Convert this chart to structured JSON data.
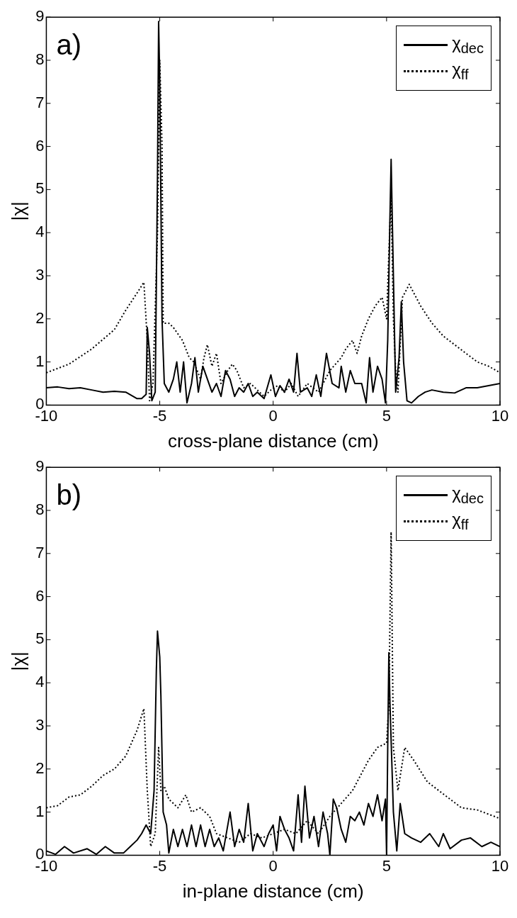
{
  "chart_data": [
    {
      "type": "line",
      "xlabel": "cross-plane distance (cm)",
      "ylabel": "|χ|",
      "annotations": [
        "a)"
      ],
      "xlim": [
        -10,
        10
      ],
      "ylim": [
        0,
        9
      ],
      "xticks": [
        -10,
        -5,
        0,
        5,
        10
      ],
      "yticks": [
        0,
        1,
        2,
        3,
        4,
        5,
        6,
        7,
        8,
        9
      ],
      "grid": false,
      "legend": "top right",
      "marker": "none",
      "series": [
        {
          "name": "χ$_{dec}$",
          "color": "#000000",
          "line_style": "solid",
          "x": [
            -10,
            -9.5,
            -9,
            -8.5,
            -8,
            -7.5,
            -7,
            -6.5,
            -6,
            -5.8,
            -5.6,
            -5.55,
            -5.45,
            -5.35,
            -5.2,
            -5.1,
            -5.05,
            -5,
            -4.9,
            -4.8,
            -4.6,
            -4.4,
            -4.25,
            -4.1,
            -3.95,
            -3.8,
            -3.6,
            -3.45,
            -3.3,
            -3.1,
            -2.9,
            -2.7,
            -2.5,
            -2.3,
            -2.1,
            -1.9,
            -1.7,
            -1.5,
            -1.3,
            -1.1,
            -0.9,
            -0.7,
            -0.4,
            -0.1,
            0.1,
            0.3,
            0.5,
            0.7,
            0.9,
            1.05,
            1.2,
            1.5,
            1.7,
            1.9,
            2.1,
            2.35,
            2.6,
            2.9,
            3,
            3.2,
            3.4,
            3.6,
            3.9,
            4.1,
            4.25,
            4.4,
            4.6,
            4.8,
            4.95,
            5.05,
            5.15,
            5.2,
            5.3,
            5.4,
            5.55,
            5.65,
            5.75,
            5.9,
            6.1,
            6.4,
            6.7,
            7,
            7.5,
            8,
            8.5,
            9,
            9.5,
            10
          ],
          "values": [
            0.4,
            0.42,
            0.38,
            0.4,
            0.35,
            0.3,
            0.32,
            0.3,
            0.15,
            0.15,
            0.25,
            1.8,
            1.2,
            0.1,
            0.3,
            5.3,
            8.9,
            7.5,
            2,
            0.5,
            0.3,
            0.6,
            1,
            0.3,
            1,
            0.05,
            0.5,
            1.1,
            0.3,
            0.9,
            0.6,
            0.3,
            0.5,
            0.2,
            0.8,
            0.6,
            0.2,
            0.4,
            0.3,
            0.5,
            0.2,
            0.3,
            0.15,
            0.7,
            0.2,
            0.45,
            0.3,
            0.6,
            0.3,
            1.2,
            0.3,
            0.4,
            0.2,
            0.7,
            0.2,
            1.2,
            0.5,
            0.4,
            0.9,
            0.3,
            0.8,
            0.5,
            0.5,
            0.05,
            1.1,
            0.3,
            0.9,
            0.6,
            0.05,
            1.5,
            4.4,
            5.7,
            3,
            0.3,
            1.1,
            2.4,
            1,
            0.1,
            0.05,
            0.2,
            0.3,
            0.35,
            0.3,
            0.28,
            0.4,
            0.4,
            0.45,
            0.5
          ]
        },
        {
          "name": "χ$_{ff}$",
          "color": "#000000",
          "line_style": "dotted",
          "x": [
            -10,
            -9,
            -8,
            -7,
            -6.5,
            -6,
            -5.7,
            -5.55,
            -5.45,
            -5.3,
            -5.1,
            -5,
            -4.9,
            -4.85,
            -4.6,
            -4.4,
            -4,
            -3.7,
            -3.5,
            -3.2,
            -3.05,
            -2.9,
            -2.7,
            -2.5,
            -2.3,
            -2,
            -1.8,
            -1.6,
            -1.3,
            -1,
            -0.7,
            -0.4,
            -0.1,
            0.2,
            0.5,
            0.8,
            1.1,
            1.5,
            2,
            2.5,
            3,
            3.2,
            3.5,
            3.7,
            3.9,
            4.2,
            4.5,
            4.8,
            5,
            5.1,
            5.2,
            5.3,
            5.4,
            5.5,
            5.7,
            6,
            6.5,
            7,
            7.5,
            8,
            8.5,
            9,
            9.5,
            10
          ],
          "values": [
            0.75,
            0.95,
            1.3,
            1.75,
            2.2,
            2.6,
            2.85,
            1.5,
            0.1,
            0.5,
            4,
            8,
            6,
            1.9,
            1.9,
            1.8,
            1.5,
            1.1,
            1,
            0.6,
            1.1,
            1.4,
            0.9,
            1.2,
            0.5,
            0.8,
            0.95,
            0.8,
            0.4,
            0.5,
            0.35,
            0.2,
            0.35,
            0.45,
            0.3,
            0.5,
            0.2,
            0.5,
            0.3,
            0.8,
            1.1,
            1.3,
            1.5,
            1.2,
            1.6,
            2,
            2.3,
            2.5,
            2,
            3.5,
            4.9,
            2,
            0.8,
            0.3,
            2.5,
            2.8,
            2.3,
            1.9,
            1.6,
            1.4,
            1.2,
            1,
            0.9,
            0.75
          ]
        }
      ]
    },
    {
      "type": "line",
      "xlabel": "in-plane distance (cm)",
      "ylabel": "|χ|",
      "annotations": [
        "b)"
      ],
      "xlim": [
        -10,
        10
      ],
      "ylim": [
        0,
        9
      ],
      "xticks": [
        -10,
        -5,
        0,
        5,
        10
      ],
      "yticks": [
        0,
        1,
        2,
        3,
        4,
        5,
        6,
        7,
        8,
        9
      ],
      "grid": false,
      "legend": "top right",
      "marker": "none",
      "series": [
        {
          "name": "χ$_{dec}$",
          "color": "#000000",
          "line_style": "solid",
          "x": [
            -10,
            -9.6,
            -9.2,
            -8.8,
            -8.2,
            -7.8,
            -7.4,
            -7,
            -6.6,
            -6.3,
            -6,
            -5.8,
            -5.6,
            -5.4,
            -5.25,
            -5.15,
            -5.1,
            -5,
            -4.95,
            -4.85,
            -4.7,
            -4.6,
            -4.4,
            -4.2,
            -4,
            -3.8,
            -3.6,
            -3.4,
            -3.2,
            -3,
            -2.8,
            -2.6,
            -2.4,
            -2.2,
            -1.9,
            -1.7,
            -1.5,
            -1.3,
            -1.1,
            -0.9,
            -0.7,
            -0.4,
            -0.2,
            0,
            0.15,
            0.3,
            0.5,
            0.7,
            0.9,
            1.1,
            1.25,
            1.4,
            1.6,
            1.8,
            2,
            2.2,
            2.4,
            2.5,
            2.65,
            2.8,
            3,
            3.2,
            3.4,
            3.6,
            3.8,
            4,
            4.2,
            4.4,
            4.6,
            4.8,
            4.95,
            5,
            5.05,
            5.1,
            5.15,
            5.3,
            5.45,
            5.6,
            5.8,
            6.1,
            6.5,
            6.9,
            7.3,
            7.5,
            7.8,
            8.3,
            8.7,
            9.2,
            9.6,
            10
          ],
          "values": [
            0.1,
            0.02,
            0.2,
            0.05,
            0.15,
            0.02,
            0.2,
            0.05,
            0.05,
            0.2,
            0.35,
            0.5,
            0.7,
            0.5,
            1.5,
            4.3,
            5.2,
            4.6,
            3.7,
            1,
            0.7,
            0.05,
            0.6,
            0.2,
            0.6,
            0.2,
            0.7,
            0.2,
            0.7,
            0.2,
            0.6,
            0.2,
            0.4,
            0.1,
            1,
            0.2,
            0.6,
            0.3,
            1.2,
            0.1,
            0.5,
            0.2,
            0.5,
            0.7,
            0.1,
            0.9,
            0.6,
            0.4,
            0.1,
            1.4,
            0.3,
            1.6,
            0.4,
            0.9,
            0.2,
            1,
            0.5,
            0,
            1.3,
            1.1,
            0.6,
            0.3,
            0.9,
            0.8,
            1,
            0.7,
            1.2,
            0.9,
            1.4,
            0.8,
            1.3,
            0,
            2.5,
            4.7,
            3.5,
            1,
            0.1,
            1.2,
            0.5,
            0.4,
            0.3,
            0.5,
            0.2,
            0.5,
            0.15,
            0.35,
            0.4,
            0.2,
            0.3,
            0.2
          ]
        },
        {
          "name": "χ$_{ff}$",
          "color": "#000000",
          "line_style": "dotted",
          "x": [
            -10,
            -9.5,
            -9,
            -8.5,
            -8,
            -7.5,
            -7,
            -6.5,
            -6,
            -5.7,
            -5.55,
            -5.4,
            -5.2,
            -5.05,
            -4.95,
            -4.8,
            -4.6,
            -4.2,
            -3.85,
            -3.6,
            -3.2,
            -2.8,
            -2.5,
            -2,
            -1.5,
            -1,
            -0.5,
            0,
            0.5,
            1,
            1.5,
            2,
            2.5,
            3,
            3.5,
            3.8,
            4.2,
            4.6,
            5,
            5.1,
            5.2,
            5.3,
            5.5,
            5.8,
            6.2,
            6.8,
            7.3,
            7.8,
            8.3,
            9,
            9.5,
            10
          ],
          "values": [
            1.1,
            1.15,
            1.35,
            1.4,
            1.6,
            1.85,
            2,
            2.3,
            2.9,
            3.4,
            1.5,
            0.2,
            0.5,
            2.5,
            1.5,
            1.6,
            1.3,
            1.1,
            1.4,
            1,
            1.1,
            0.9,
            0.5,
            0.4,
            0.3,
            0.5,
            0.4,
            0.5,
            0.6,
            0.5,
            0.8,
            0.5,
            0.9,
            1.2,
            1.5,
            1.8,
            2.2,
            2.5,
            2.6,
            3.5,
            7.5,
            2.5,
            1.5,
            2.5,
            2.2,
            1.7,
            1.5,
            1.3,
            1.1,
            1.05,
            0.95,
            0.85
          ]
        }
      ]
    }
  ]
}
